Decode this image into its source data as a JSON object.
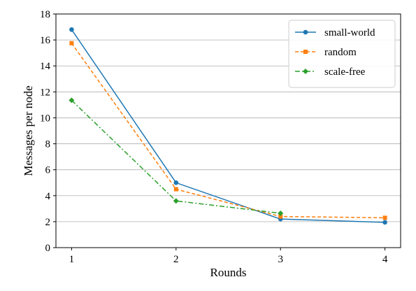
{
  "chart_data": {
    "type": "line",
    "title": "",
    "xlabel": "Rounds",
    "ylabel": "Messages per node",
    "x": [
      1,
      2,
      3,
      4
    ],
    "xlim": [
      0.85,
      4.15
    ],
    "ylim": [
      0,
      18
    ],
    "xticks": [
      1,
      2,
      3,
      4
    ],
    "yticks": [
      0,
      2,
      4,
      6,
      8,
      10,
      12,
      14,
      16,
      18
    ],
    "grid": "horizontal",
    "legend_position": "top-right",
    "series": [
      {
        "name": "small-world",
        "values": [
          16.8,
          5.0,
          2.2,
          1.95
        ],
        "color": "#1f77b4",
        "line_style": "solid",
        "marker": "circle"
      },
      {
        "name": "random",
        "values": [
          15.75,
          4.5,
          2.4,
          2.3
        ],
        "color": "#ff7f0e",
        "line_style": "dashed",
        "marker": "square"
      },
      {
        "name": "scale-free",
        "values": [
          11.35,
          3.6,
          2.65,
          null
        ],
        "color": "#2ca02c",
        "line_style": "dash-dot",
        "marker": "diamond"
      }
    ]
  }
}
